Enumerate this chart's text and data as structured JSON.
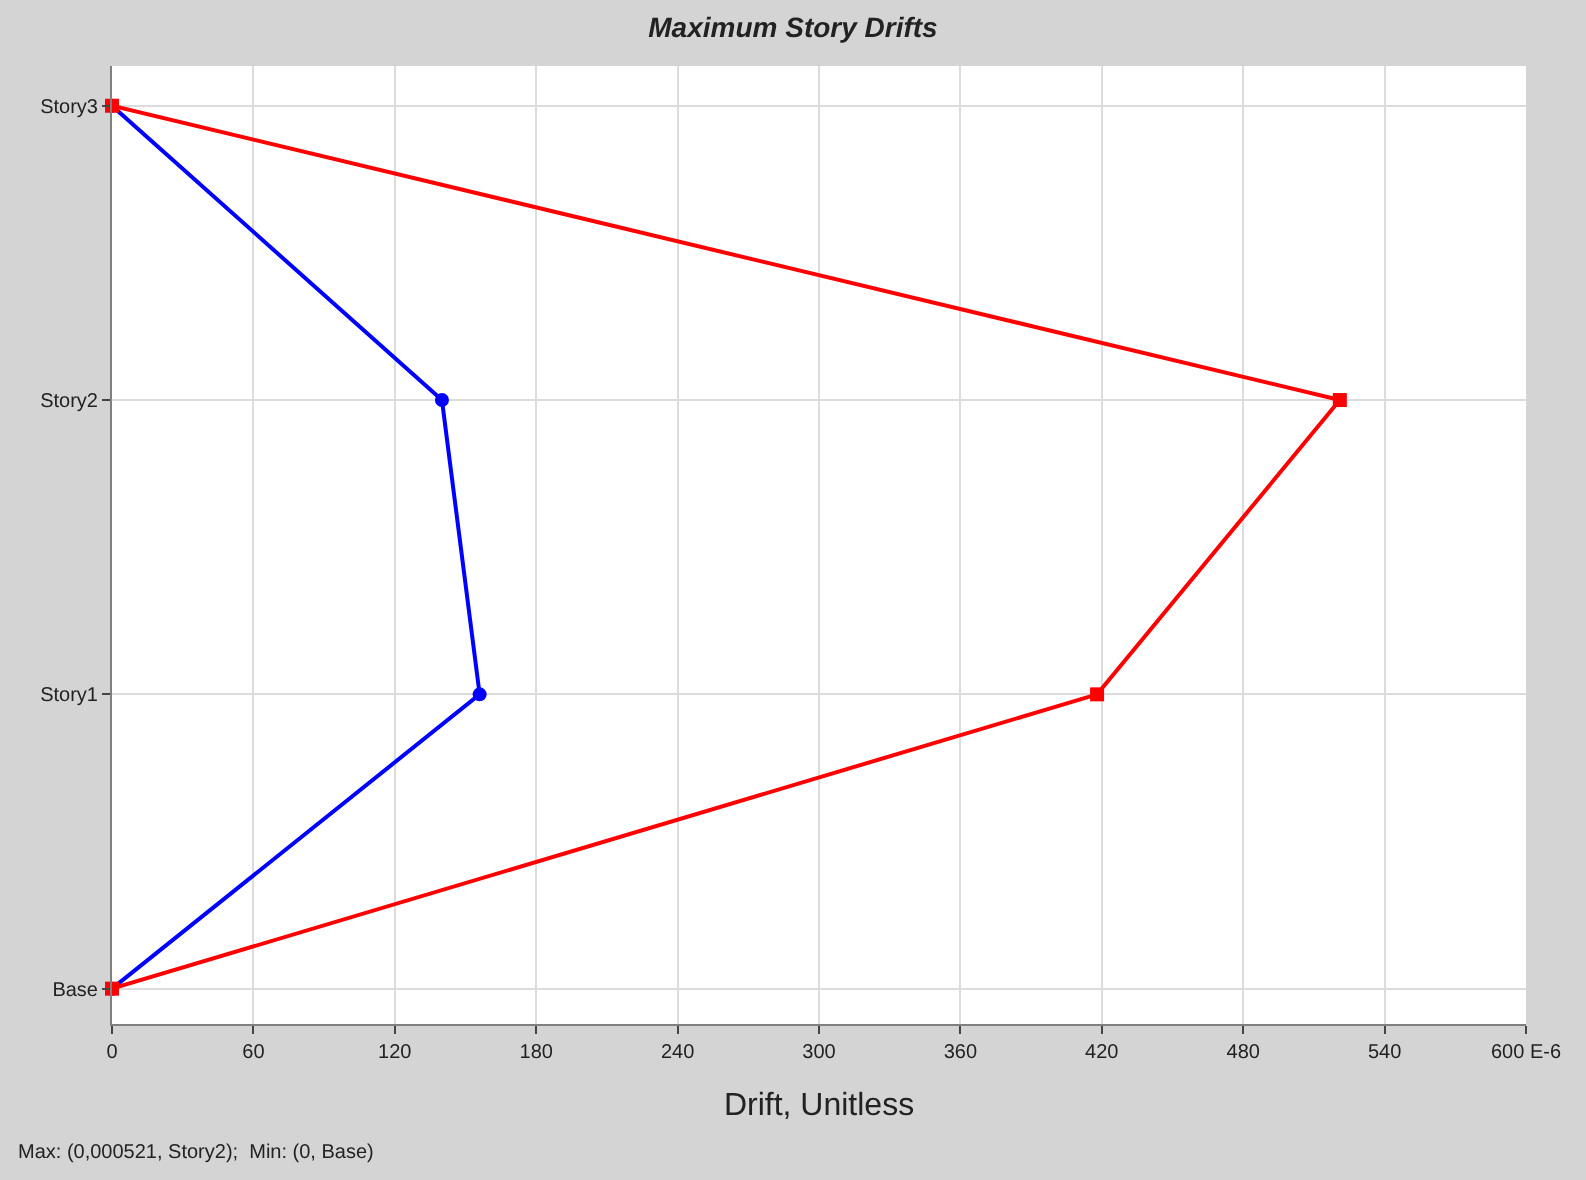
{
  "chart_data": {
    "type": "line",
    "orientation": "horizontal",
    "title": "Maximum Story Drifts",
    "xlabel": "Drift, Unitless",
    "annotations": [
      "Max: (0,000521, Story2);  Min: (0, Base)"
    ],
    "xlim": [
      0,
      600
    ],
    "xticks": [
      0,
      60,
      120,
      180,
      240,
      300,
      360,
      420,
      480,
      540,
      {
        "value": 600,
        "label": "600 E-6"
      }
    ],
    "categories": [
      "Story3",
      "Story2",
      "Story1",
      "Base"
    ],
    "grid": true,
    "series": [
      {
        "color": "#0000ff",
        "marker": "circle",
        "values": [
          0,
          140,
          156,
          0
        ]
      },
      {
        "color": "#ff0000",
        "marker": "square",
        "values": [
          0,
          521,
          418,
          0
        ]
      }
    ]
  }
}
